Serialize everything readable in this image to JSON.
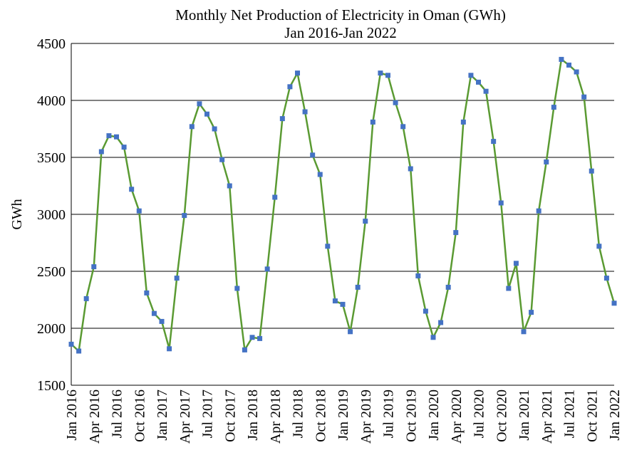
{
  "chart_data": {
    "type": "line",
    "title": "Monthly Net Production of Electricity in Oman (GWh)",
    "subtitle": "Jan 2016-Jan 2022",
    "y_label": "GWh",
    "categories": [
      "Jan 2016",
      null,
      null,
      "Apr 2016",
      null,
      null,
      "Jul 2016",
      null,
      null,
      "Oct 2016",
      null,
      null,
      "Jan 2017",
      null,
      null,
      "Apr 2017",
      null,
      null,
      "Jul 2017",
      null,
      null,
      "Oct 2017",
      null,
      null,
      "Jan 2018",
      null,
      null,
      "Apr 2018",
      null,
      null,
      "Jul 2018",
      null,
      null,
      "Oct 2018",
      null,
      null,
      "Jan 2019",
      null,
      null,
      "Apr 2019",
      null,
      null,
      "Jul 2019",
      null,
      null,
      "Oct 2019",
      null,
      null,
      "Jan 2020",
      null,
      null,
      "Apr 2020",
      null,
      null,
      "Jul 2020",
      null,
      null,
      "Oct 2020",
      null,
      null,
      "Jan 2021",
      null,
      null,
      "Apr 2021",
      null,
      null,
      "Jul 2021",
      null,
      null,
      "Oct 2021",
      null,
      null,
      "Jan 2022"
    ],
    "series": [
      {
        "name": "GWh",
        "color": "#5a9a32",
        "marker_color": "#4472c4",
        "values": [
          1860,
          1800,
          2260,
          2540,
          3550,
          3690,
          3680,
          3590,
          3220,
          3030,
          2310,
          2130,
          2060,
          1820,
          2440,
          2990,
          3770,
          3970,
          3880,
          3750,
          3480,
          3250,
          2350,
          1810,
          1920,
          1910,
          2520,
          3150,
          3840,
          4120,
          4240,
          3900,
          3520,
          3350,
          2720,
          2240,
          2210,
          1970,
          2360,
          2940,
          3810,
          4240,
          4220,
          3980,
          3770,
          3400,
          2460,
          2150,
          1920,
          2050,
          2360,
          2840,
          3810,
          4220,
          4160,
          4080,
          3640,
          3100,
          2350,
          2570,
          1970,
          2140,
          3030,
          3460,
          3940,
          4360,
          4310,
          4250,
          4030,
          3380,
          2720,
          2440,
          2220
        ]
      }
    ],
    "ylim": [
      1500,
      4500
    ],
    "yticks": [
      1500,
      2000,
      2500,
      3000,
      3500,
      4000,
      4500
    ],
    "grid": true
  }
}
